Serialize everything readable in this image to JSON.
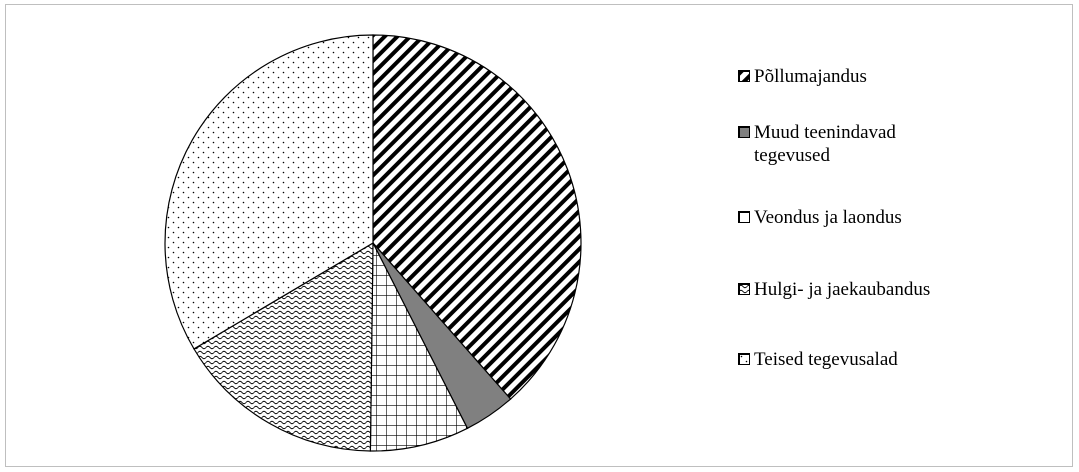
{
  "chart_data": {
    "type": "pie",
    "title": "",
    "start_angle_deg": 90,
    "direction": "clockwise",
    "slices": [
      {
        "label": "Põllumajandus",
        "value": 38.5,
        "pattern": "wide-diagonal",
        "color": "#000000"
      },
      {
        "label": "Muud teenindavad tegevused",
        "value": 4,
        "pattern": "solid",
        "color": "#808080"
      },
      {
        "label": "Veondus ja laondus",
        "value": 7.7,
        "pattern": "grid",
        "color": "#000000"
      },
      {
        "label": "Hulgi- ja jaekaubandus",
        "value": 16.3,
        "pattern": "wave",
        "color": "#000000"
      },
      {
        "label": "Teised tegevusalad",
        "value": 33.5,
        "pattern": "dots",
        "color": "#000000"
      }
    ],
    "legend": {
      "position": "right"
    }
  }
}
